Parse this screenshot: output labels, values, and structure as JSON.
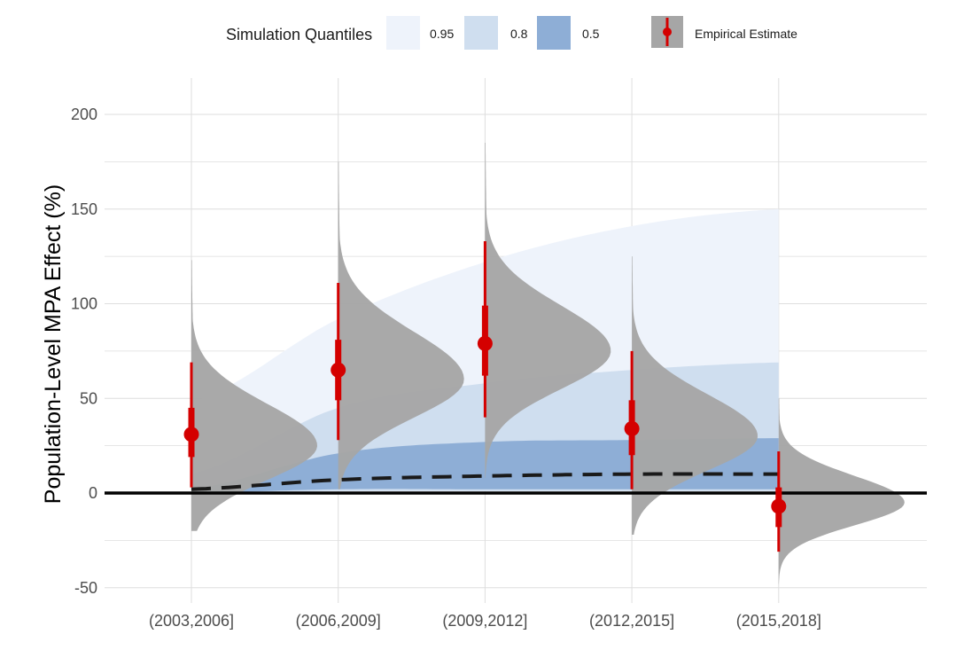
{
  "chart_data": {
    "type": "violin",
    "ylabel": "Population-Level MPA Effect (%)",
    "xlabel": "",
    "ylim": [
      -55,
      218
    ],
    "yticks": [
      -50,
      0,
      50,
      100,
      150,
      200
    ],
    "grid": true,
    "legend": {
      "position": "top",
      "title": "Simulation Quantiles",
      "quantile_labels": [
        "0.95",
        "0.8",
        "0.5"
      ],
      "empirical_label": "Empirical Estimate"
    },
    "categories": [
      "(2003,2006]",
      "(2006,2009]",
      "(2009,2012]",
      "(2012,2015]",
      "(2015,2018]"
    ],
    "colors": {
      "q95": "#eef3fb",
      "q80": "#cfdeef",
      "q50": "#8eaed6",
      "violin": "#a6a6a6",
      "estimate": "#d40000",
      "median_line": "#1a1a1a",
      "zero_line": "#000000",
      "grid": "#dedede"
    },
    "simulation_bands": {
      "q95": {
        "lower": [
          0,
          1,
          1,
          1,
          1
        ],
        "upper": [
          48,
          92,
          122,
          141,
          150
        ]
      },
      "q80": {
        "lower": [
          0,
          1,
          1,
          1,
          1
        ],
        "upper": [
          10,
          45,
          58,
          65,
          69
        ]
      },
      "q50": {
        "lower": [
          0,
          2,
          2,
          2,
          2
        ],
        "upper": [
          2,
          21,
          27,
          28,
          29
        ]
      },
      "median": [
        2,
        7,
        9,
        10,
        10
      ]
    },
    "empirical_estimates": [
      {
        "category": "(2003,2006]",
        "mean": 31,
        "inner": [
          19,
          45
        ],
        "outer": [
          3,
          69
        ]
      },
      {
        "category": "(2006,2009]",
        "mean": 65,
        "inner": [
          49,
          81
        ],
        "outer": [
          28,
          111
        ]
      },
      {
        "category": "(2009,2012]",
        "mean": 79,
        "inner": [
          62,
          99
        ],
        "outer": [
          40,
          133
        ]
      },
      {
        "category": "(2012,2015]",
        "mean": 34,
        "inner": [
          20,
          49
        ],
        "outer": [
          2,
          75
        ]
      },
      {
        "category": "(2015,2018]",
        "mean": -7,
        "inner": [
          -18,
          3
        ],
        "outer": [
          -31,
          22
        ]
      }
    ],
    "posterior_densities": [
      {
        "category": "(2003,2006]",
        "min": -20,
        "max": 123,
        "mode": 25,
        "sd_low": 18,
        "sd_high": 22
      },
      {
        "category": "(2006,2009]",
        "min": 2,
        "max": 175,
        "mode": 60,
        "sd_low": 20,
        "sd_high": 25
      },
      {
        "category": "(2009,2012]",
        "min": 8,
        "max": 185,
        "mode": 75,
        "sd_low": 20,
        "sd_high": 24
      },
      {
        "category": "(2012,2015]",
        "min": -22,
        "max": 125,
        "mode": 30,
        "sd_low": 18,
        "sd_high": 22
      },
      {
        "category": "(2015,2018]",
        "min": -48,
        "max": 50,
        "mode": -5,
        "sd_low": 12,
        "sd_high": 14
      }
    ]
  }
}
